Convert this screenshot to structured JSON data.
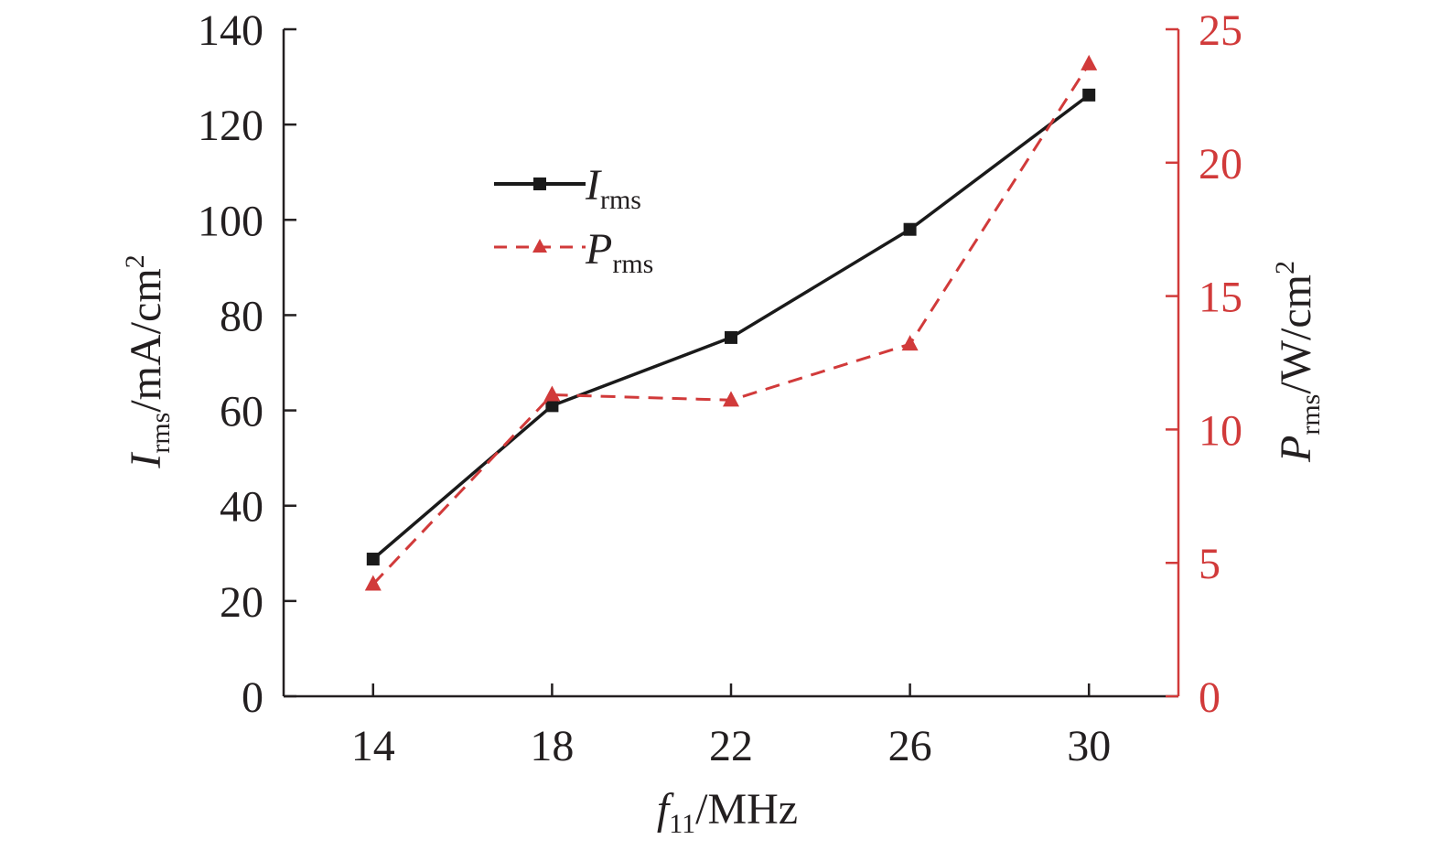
{
  "chart_data": {
    "type": "line",
    "x": [
      14,
      18,
      22,
      26,
      30
    ],
    "xticks": [
      "14",
      "18",
      "22",
      "26",
      "30"
    ],
    "xlim": [
      12,
      32
    ],
    "xlabel": {
      "main": "f",
      "sub": "11",
      "unit": "/MHz"
    },
    "y_left": {
      "label": {
        "main": "I",
        "sub": "rms",
        "unit": "/mA/cm",
        "sup": "2"
      },
      "ylim": [
        0,
        140
      ],
      "ticks": [
        "0",
        "20",
        "40",
        "60",
        "80",
        "100",
        "120",
        "140"
      ],
      "color": "#231f20"
    },
    "y_right": {
      "label": {
        "main": "P",
        "sub": "rms",
        "unit": "/W/cm",
        "sup": "2"
      },
      "ylim": [
        0,
        25
      ],
      "ticks": [
        "0",
        "5",
        "10",
        "15",
        "20",
        "25"
      ],
      "color": "#d13a3a"
    },
    "series": [
      {
        "name_main": "I",
        "name_sub": "rms",
        "axis": "left",
        "marker": "square",
        "line": "solid",
        "color": "#1a1a1a",
        "values": [
          28.8,
          61,
          75.3,
          98,
          126.2
        ]
      },
      {
        "name_main": "P",
        "name_sub": "rms",
        "axis": "right",
        "marker": "triangle",
        "line": "dashed",
        "color": "#d13a3a",
        "values": [
          4.2,
          11.3,
          11.1,
          13.2,
          23.7
        ]
      }
    ],
    "legend_position": "upper-left",
    "grid": false
  }
}
